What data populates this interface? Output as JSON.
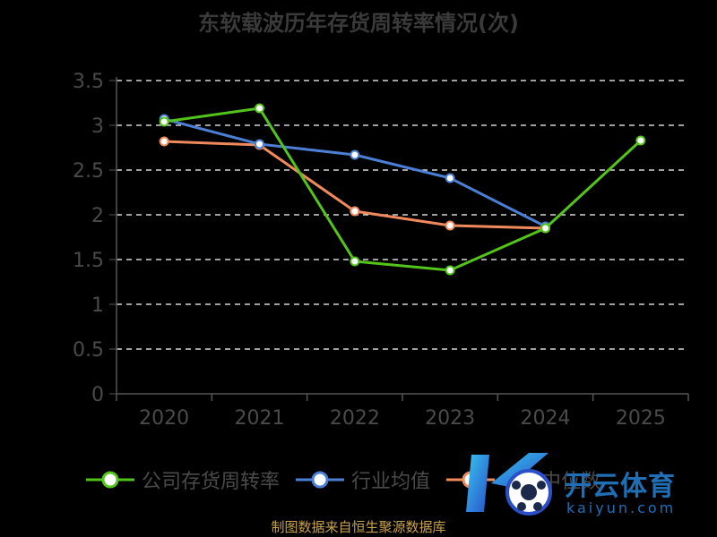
{
  "chart_data": {
    "type": "line",
    "title": "东软载波历年存货周转率情况(次)",
    "categories": [
      "2020",
      "2021",
      "2022",
      "2023",
      "2024",
      "2025"
    ],
    "ylim": [
      0,
      3.5
    ],
    "y_ticks": [
      "0",
      "0.5",
      "1",
      "1.5",
      "2",
      "2.5",
      "3",
      "3.5"
    ],
    "grid": "horizontal-dashed",
    "legend_position": "bottom",
    "series": [
      {
        "name": "公司存货周转率",
        "color": "#52c41a",
        "values": [
          3.04,
          3.19,
          1.48,
          1.38,
          1.85,
          2.83
        ]
      },
      {
        "name": "行业均值",
        "color": "#4a7fd4",
        "values": [
          3.07,
          2.79,
          2.67,
          2.41,
          1.87,
          null
        ]
      },
      {
        "name": "行业中位数",
        "color": "#f08a5d",
        "values": [
          2.82,
          2.78,
          2.04,
          1.88,
          1.85,
          null
        ]
      }
    ]
  },
  "footer": {
    "source": "制图数据来自恒生聚源数据库"
  },
  "watermark": {
    "text": "开云体育",
    "sub": "kaiyun.com"
  }
}
